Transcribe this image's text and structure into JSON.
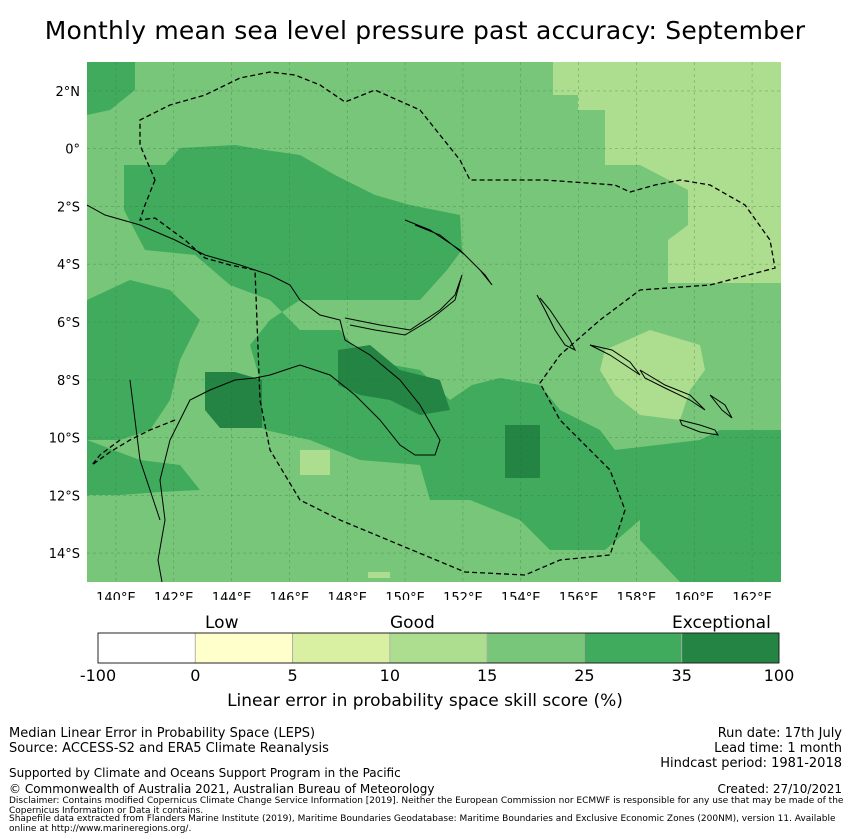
{
  "title": "Monthly mean sea level pressure past accuracy: September",
  "colorbar": {
    "words": [
      "Low",
      "Good",
      "Exceptional"
    ],
    "ticks": [
      "-100",
      "0",
      "5",
      "10",
      "15",
      "25",
      "35",
      "100"
    ],
    "colors": [
      "#ffffff",
      "#ffffcc",
      "#d9f0a3",
      "#addd8e",
      "#78c679",
      "#41ab5d",
      "#238443"
    ],
    "label": "Linear error in probability space skill score (%)"
  },
  "map": {
    "lon_labels": [
      "140°E",
      "142°E",
      "144°E",
      "146°E",
      "148°E",
      "150°E",
      "152°E",
      "154°E",
      "156°E",
      "158°E",
      "160°E",
      "162°E"
    ],
    "lat_labels": [
      "2°N",
      "0°",
      "2°S",
      "4°S",
      "6°S",
      "8°S",
      "10°S",
      "12°S",
      "14°S"
    ],
    "lon_range": [
      139,
      163
    ],
    "lat_range": [
      -15,
      3
    ]
  },
  "footer": {
    "metric": "Median Linear Error in Probability Space (LEPS)",
    "source": "Source: ACCESS-S2 and ERA5 Climate Reanalysis",
    "support": "Supported by Climate and Oceans Support Program in the Pacific",
    "copyright": "© Commonwealth of Australia 2021, Australian Bureau of Meteorology",
    "disclaimer": "Disclaimer: Contains modified Copernicus Climate Change Service Information [2019]. Neither the European Commission nor ECMWF is responsible for any use that may be made of the Copernicus Information or Data it contains.",
    "shapefile": "Shapefile data extracted from Flanders Marine Institute (2019), Maritime Boundaries Geodatabase: Maritime Boundaries and Exclusive Economic Zones (200NM), version 11. Available online at http://www.marineregions.org/.",
    "run_date": "Run date: 17th July",
    "lead_time": "Lead time: 1 month",
    "hindcast": "Hindcast period: 1981-2018",
    "created": "Created: 27/10/2021"
  }
}
